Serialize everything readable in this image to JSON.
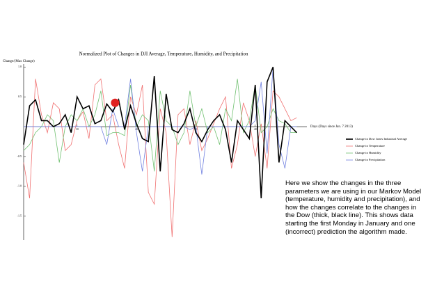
{
  "chart_data": {
    "type": "line",
    "title": "Normalized Plot of Changes in DJI Average, Temperature, Humidity, and Precipitation",
    "y_label": "Change/(Max Change)",
    "x_label": "Days (Days since Jan. 7 2013)",
    "annotation": "Here we show the changes in the three parameters we are using in our Markov Model (temperature, humidity and precipitation), and how the changes correlate to the changes in the Dow (thick, black line). This shows data starting the first Monday in January and one (incorrect) prediction the algorithm made.",
    "x": [
      1,
      2,
      3,
      4,
      5,
      6,
      7,
      8,
      9,
      10,
      11,
      12,
      13,
      14,
      15,
      16,
      17,
      18,
      19,
      20,
      21,
      22,
      23,
      24,
      25,
      26,
      27,
      28,
      29,
      30,
      31,
      32,
      33,
      34,
      35,
      36,
      37,
      38,
      39,
      40,
      41,
      42,
      43,
      44,
      45,
      46,
      47
    ],
    "series": [
      {
        "name": "Change in Dow Jones Industrial Average",
        "color": "#000000",
        "width": 1.6,
        "values": [
          -0.3,
          0.35,
          0.45,
          0.1,
          0.1,
          0.0,
          0.05,
          0.2,
          -0.1,
          0.5,
          0.3,
          0.35,
          0.05,
          0.1,
          0.38,
          0.25,
          0.45,
          -0.05,
          0.35,
          0.05,
          -0.2,
          -0.25,
          0.85,
          -0.75,
          0.55,
          -0.05,
          -0.1,
          0.05,
          0.3,
          -0.1,
          -0.25,
          -0.05,
          0.1,
          0.2,
          -0.05,
          -0.6,
          0.1,
          -0.05,
          -0.2,
          0.7,
          -1.2,
          0.75,
          1.0,
          -0.6,
          0.1,
          0.0,
          -0.1
        ]
      },
      {
        "name": "Change in Temperature",
        "color": "#f07070",
        "width": 0.8,
        "values": [
          -0.6,
          -1.2,
          0.8,
          0.2,
          -0.1,
          0.4,
          0.3,
          -0.4,
          -0.3,
          0.1,
          0.25,
          -0.2,
          0.7,
          0.8,
          0.1,
          0.2,
          -0.3,
          -0.7,
          0.5,
          0.2,
          0.7,
          -1.1,
          -1.3,
          0.3,
          -0.1,
          -1.85,
          0.2,
          0.3,
          -0.3,
          0.1,
          -0.4,
          -0.2,
          0.05,
          0.3,
          0.5,
          -0.7,
          -0.3,
          0.4,
          0.1,
          -0.5,
          0.05,
          -0.7,
          0.6,
          0.5,
          0.3,
          0.1,
          0.15
        ]
      },
      {
        "name": "Change in Humidity",
        "color": "#70c070",
        "width": 0.8,
        "values": [
          -0.4,
          -0.3,
          -0.1,
          0.0,
          0.2,
          0.1,
          -0.6,
          0.0,
          0.2,
          0.1,
          0.3,
          0.0,
          0.2,
          0.6,
          -0.15,
          -0.1,
          -0.1,
          -0.15,
          0.7,
          0.0,
          0.2,
          0.1,
          -0.75,
          0.6,
          0.1,
          0.0,
          -0.3,
          -0.1,
          0.6,
          0.0,
          0.3,
          -0.1,
          0.0,
          -0.3,
          0.3,
          0.1,
          0.8,
          -0.1,
          0.1,
          0.7,
          -0.1,
          0.0,
          0.3,
          0.1,
          0.05,
          -0.1,
          -0.1
        ]
      },
      {
        "name": "Change in Precipitation",
        "color": "#7080e0",
        "width": 0.8,
        "values": [
          0,
          0,
          0,
          0,
          0,
          0,
          0,
          0,
          0,
          0,
          0,
          0,
          0,
          0,
          -0.3,
          0.3,
          0,
          0,
          0.8,
          -0.1,
          -0.75,
          0,
          0,
          0,
          0,
          0,
          0,
          0,
          -0.05,
          0,
          -0.8,
          0,
          0,
          0,
          0,
          0,
          0,
          0,
          0,
          0.1,
          0.75,
          -0.45,
          1.0,
          -0.3,
          -0.7,
          0,
          0
        ]
      }
    ],
    "prediction": {
      "x": 16.4,
      "y": 0.4,
      "color": "#e02020"
    },
    "xlim": [
      1,
      48
    ],
    "xticks": [
      10,
      20,
      30,
      40
    ],
    "ylim": [
      -1.9,
      1.05
    ],
    "yticks": [
      {
        "value": 1,
        "label": "1.0"
      },
      {
        "value": 0.5,
        "label": "0.5"
      },
      {
        "value": -0.5,
        "label": "-0.5"
      },
      {
        "value": -1,
        "label": "-1.0"
      },
      {
        "value": -1.5,
        "label": "-1.5"
      }
    ],
    "legend": "right"
  }
}
